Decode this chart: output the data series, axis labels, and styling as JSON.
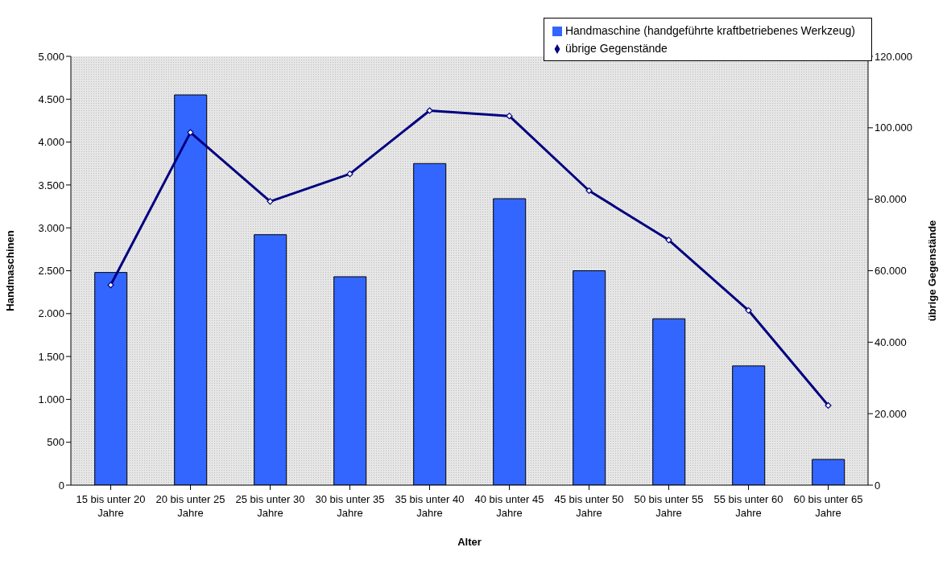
{
  "chart_data": {
    "type": "bar",
    "xlabel": "Alter",
    "ylabel": "Handmaschinen",
    "y2label": "übrige Gegenstände",
    "categories": [
      "15 bis unter 20 Jahre",
      "20 bis unter 25 Jahre",
      "25 bis unter 30 Jahre",
      "30 bis unter 35 Jahre",
      "35 bis unter 40 Jahre",
      "40 bis unter 45 Jahre",
      "45 bis unter 50 Jahre",
      "50 bis unter 55 Jahre",
      "55 bis unter 60 Jahre",
      "60 bis unter 65 Jahre"
    ],
    "series": [
      {
        "name": "Handmaschine (handgeführte kraftbetriebenes Werkzeug)",
        "color": "#3366ff",
        "values": [
          2480,
          4550,
          2920,
          2430,
          3750,
          3340,
          2500,
          1940,
          1390,
          300
        ]
      },
      {
        "name": "übrige Gegenstände",
        "type": "line",
        "axis": "y2",
        "color": "#000080",
        "marker": "diamond",
        "values": [
          56000,
          98700,
          79400,
          87100,
          104800,
          103300,
          82400,
          68600,
          48900,
          22300
        ]
      }
    ],
    "ylim": [
      0,
      5000
    ],
    "yticks": [
      {
        "value": 0,
        "label": "0"
      },
      {
        "value": 500,
        "label": "500"
      },
      {
        "value": 1000,
        "label": "1.000"
      },
      {
        "value": 1500,
        "label": "1.500"
      },
      {
        "value": 2000,
        "label": "2.000"
      },
      {
        "value": 2500,
        "label": "2.500"
      },
      {
        "value": 3000,
        "label": "3.000"
      },
      {
        "value": 3500,
        "label": "3.500"
      },
      {
        "value": 4000,
        "label": "4.000"
      },
      {
        "value": 4500,
        "label": "4.500"
      },
      {
        "value": 5000,
        "label": "5.000"
      }
    ],
    "y2lim": [
      0,
      120000
    ],
    "y2ticks": [
      {
        "value": 0,
        "label": "0"
      },
      {
        "value": 20000,
        "label": "20.000"
      },
      {
        "value": 40000,
        "label": "40.000"
      },
      {
        "value": 60000,
        "label": "60.000"
      },
      {
        "value": 80000,
        "label": "80.000"
      },
      {
        "value": 100000,
        "label": "100.000"
      },
      {
        "value": 120000,
        "label": "120.000"
      }
    ],
    "legend": "top right",
    "grid": false
  }
}
